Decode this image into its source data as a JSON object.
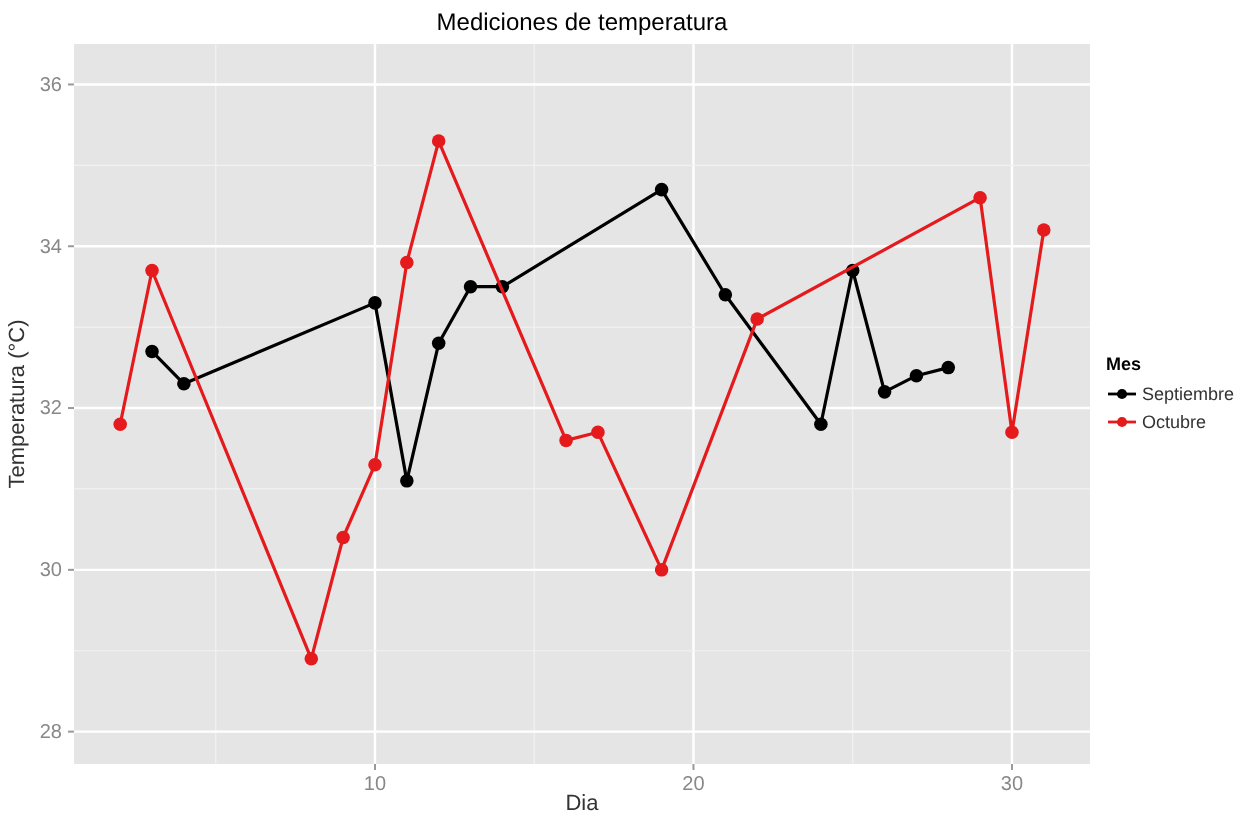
{
  "chart_data": {
    "type": "line",
    "title": "Mediciones de temperatura",
    "xlabel": "Dia",
    "ylabel": "Temperatura (°C)",
    "legend_title": "Mes",
    "xlim": [
      0.55,
      32.45
    ],
    "xticks": [
      10,
      20,
      30
    ],
    "ylim": [
      27.6,
      36.5
    ],
    "yticks": [
      28,
      30,
      32,
      34,
      36
    ],
    "grid": true,
    "legend": "right",
    "marker": "circle",
    "line_style": "solid",
    "series": [
      {
        "name": "Septiembre",
        "color": "#000000",
        "x": [
          3,
          4,
          10,
          11,
          12,
          13,
          14,
          19,
          21,
          24,
          25,
          26,
          27,
          28
        ],
        "values": [
          32.7,
          32.3,
          33.3,
          31.1,
          32.8,
          33.5,
          33.5,
          34.7,
          33.4,
          31.8,
          33.7,
          32.2,
          32.4,
          32.5
        ]
      },
      {
        "name": "Octubre",
        "color": "#e41a1c",
        "x": [
          2,
          3,
          8,
          9,
          10,
          11,
          12,
          16,
          17,
          19,
          22,
          29,
          30,
          31
        ],
        "values": [
          31.8,
          33.7,
          28.9,
          30.4,
          31.3,
          33.8,
          35.3,
          31.6,
          31.7,
          30.0,
          33.1,
          34.6,
          31.7,
          34.2
        ]
      }
    ]
  }
}
